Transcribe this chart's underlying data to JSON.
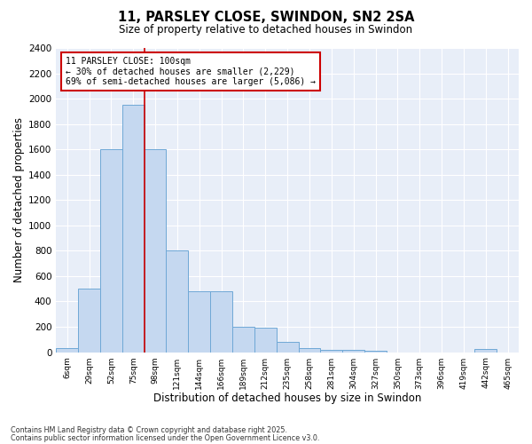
{
  "title_line1": "11, PARSLEY CLOSE, SWINDON, SN2 2SA",
  "title_line2": "Size of property relative to detached houses in Swindon",
  "xlabel": "Distribution of detached houses by size in Swindon",
  "ylabel": "Number of detached properties",
  "categories": [
    "6sqm",
    "29sqm",
    "52sqm",
    "75sqm",
    "98sqm",
    "121sqm",
    "144sqm",
    "166sqm",
    "189sqm",
    "212sqm",
    "235sqm",
    "258sqm",
    "281sqm",
    "304sqm",
    "327sqm",
    "350sqm",
    "373sqm",
    "396sqm",
    "419sqm",
    "442sqm",
    "465sqm"
  ],
  "values": [
    30,
    500,
    1600,
    1950,
    1600,
    800,
    480,
    480,
    200,
    195,
    80,
    30,
    20,
    15,
    10,
    0,
    0,
    0,
    0,
    25,
    0
  ],
  "bar_color": "#c5d8f0",
  "bar_edge_color": "#6fa8d6",
  "background_color": "#e8eef8",
  "grid_color": "#ffffff",
  "annotation_box_color": "#cc0000",
  "property_line_color": "#cc0000",
  "property_line_x": 4,
  "annotation_text_line1": "11 PARSLEY CLOSE: 100sqm",
  "annotation_text_line2": "← 30% of detached houses are smaller (2,229)",
  "annotation_text_line3": "69% of semi-detached houses are larger (5,086) →",
  "ylim": [
    0,
    2400
  ],
  "yticks": [
    0,
    200,
    400,
    600,
    800,
    1000,
    1200,
    1400,
    1600,
    1800,
    2000,
    2200,
    2400
  ],
  "footnote_line1": "Contains HM Land Registry data © Crown copyright and database right 2025.",
  "footnote_line2": "Contains public sector information licensed under the Open Government Licence v3.0."
}
